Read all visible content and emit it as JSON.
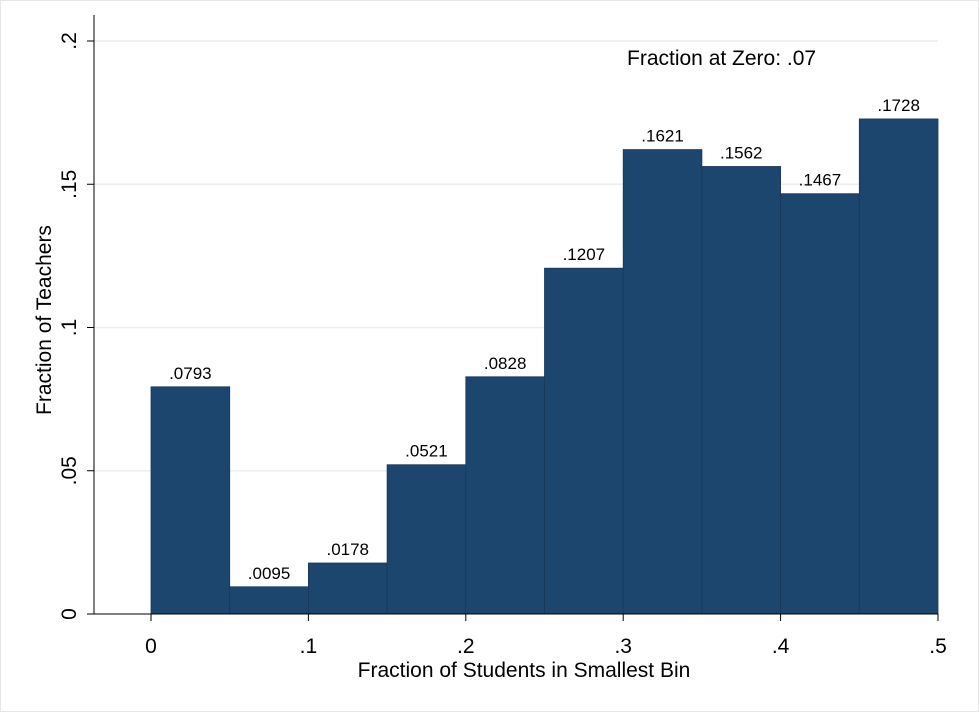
{
  "chart_data": {
    "type": "bar",
    "bins": [
      {
        "x0": 0.0,
        "x1": 0.05,
        "value": 0.0793,
        "label": ".0793"
      },
      {
        "x0": 0.05,
        "x1": 0.1,
        "value": 0.0095,
        "label": ".0095"
      },
      {
        "x0": 0.1,
        "x1": 0.15,
        "value": 0.0178,
        "label": ".0178"
      },
      {
        "x0": 0.15,
        "x1": 0.2,
        "value": 0.0521,
        "label": ".0521"
      },
      {
        "x0": 0.2,
        "x1": 0.25,
        "value": 0.0828,
        "label": ".0828"
      },
      {
        "x0": 0.25,
        "x1": 0.3,
        "value": 0.1207,
        "label": ".1207"
      },
      {
        "x0": 0.3,
        "x1": 0.35,
        "value": 0.1621,
        "label": ".1621"
      },
      {
        "x0": 0.35,
        "x1": 0.4,
        "value": 0.1562,
        "label": ".1562"
      },
      {
        "x0": 0.4,
        "x1": 0.45,
        "value": 0.1467,
        "label": ".1467"
      },
      {
        "x0": 0.45,
        "x1": 0.5,
        "value": 0.1728,
        "label": ".1728"
      }
    ],
    "xlabel": "Fraction of Students in Smallest Bin",
    "ylabel": "Fraction of Teachers",
    "xlim": [
      -0.0375,
      0.5
    ],
    "ylim": [
      0,
      0.2
    ],
    "x_ticks": [
      {
        "value": 0,
        "label": "0"
      },
      {
        "value": 0.1,
        "label": ".1"
      },
      {
        "value": 0.2,
        "label": ".2"
      },
      {
        "value": 0.3,
        "label": ".3"
      },
      {
        "value": 0.4,
        "label": ".4"
      },
      {
        "value": 0.5,
        "label": ".5"
      }
    ],
    "y_ticks": [
      {
        "value": 0,
        "label": "0"
      },
      {
        "value": 0.05,
        "label": ".05"
      },
      {
        "value": 0.1,
        "label": ".1"
      },
      {
        "value": 0.15,
        "label": ".15"
      },
      {
        "value": 0.2,
        "label": ".2"
      }
    ],
    "annotation": "Fraction at Zero: .07",
    "grid": true,
    "colors": {
      "bar": "#1d466f",
      "bar_edge": "#19385a",
      "grid": "#e8eef2",
      "axis": "#000000"
    }
  }
}
